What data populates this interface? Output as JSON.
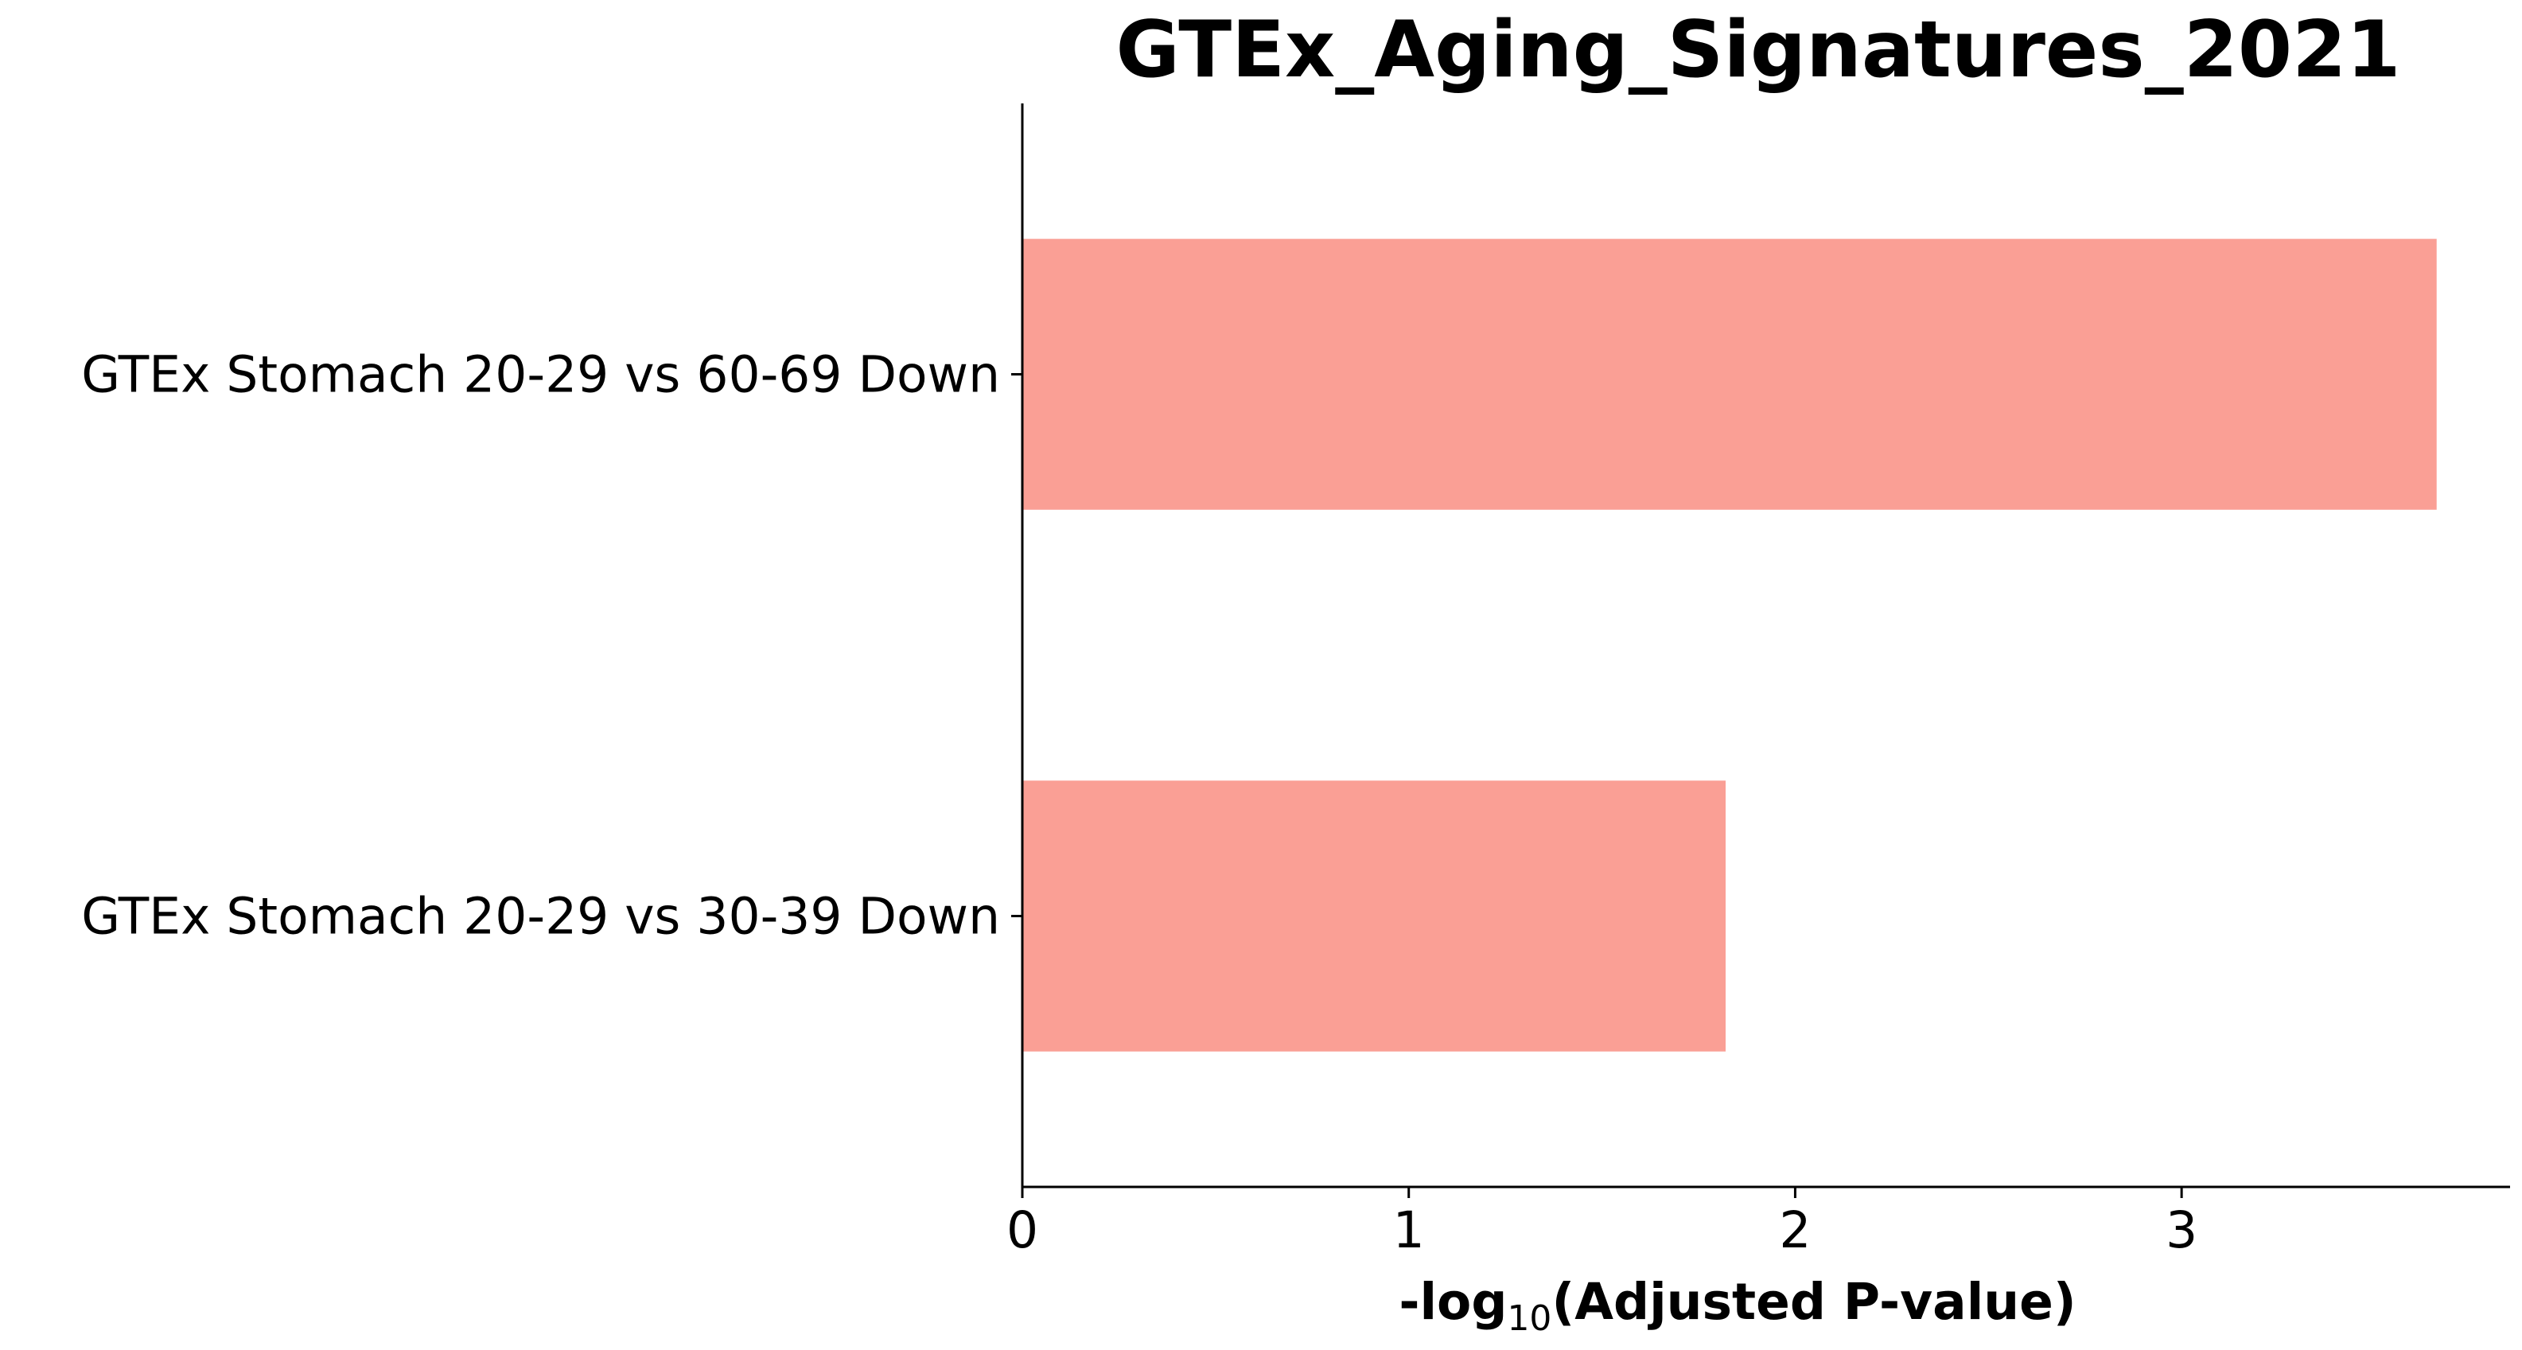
{
  "chart_data": {
    "type": "bar",
    "orientation": "horizontal",
    "title": "GTEx_Aging_Signatures_2021",
    "categories": [
      "GTEx Stomach 20-29 vs 60-69 Down",
      "GTEx Stomach 20-29 vs 30-39 Down"
    ],
    "values": [
      3.66,
      1.82
    ],
    "xlabel": {
      "prefix": "-log",
      "subscript": "10",
      "suffix": "(Adjusted P-value)"
    },
    "ylabel": "",
    "xlim": [
      0,
      3.85
    ],
    "xticks": [
      "0",
      "1",
      "2",
      "3"
    ],
    "grid": false,
    "legend": "none",
    "bar_color": "#fa9f95"
  }
}
